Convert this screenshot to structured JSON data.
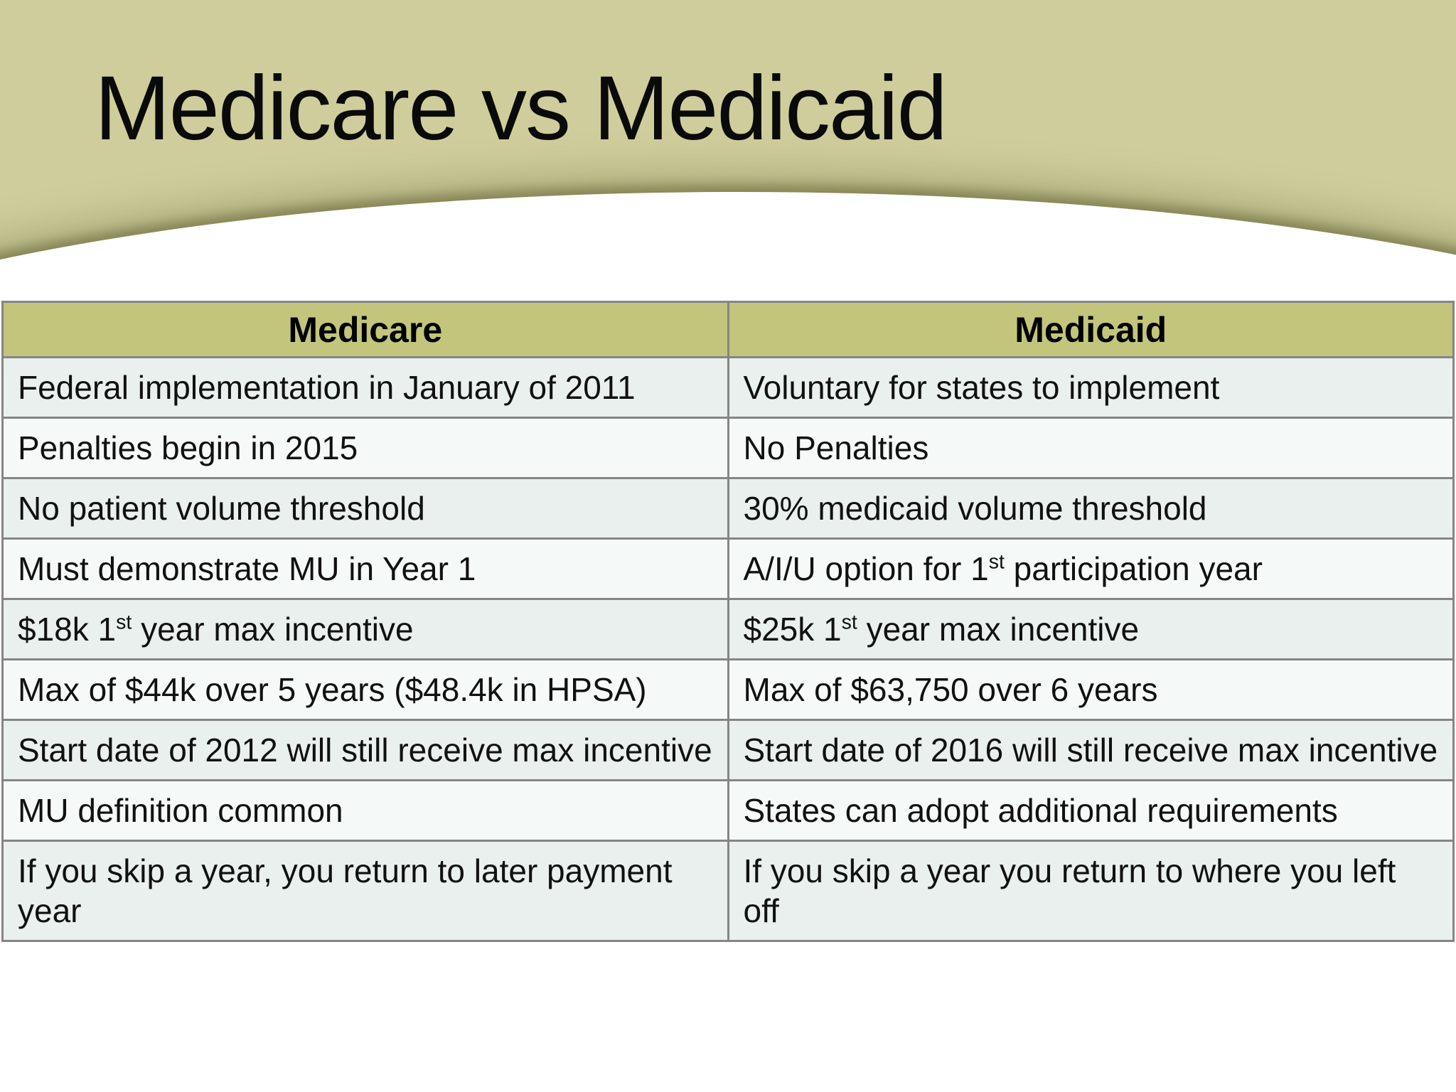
{
  "slide_title": "Medicare vs Medicaid",
  "colors": {
    "band_olive": "#cfcd9b",
    "header_cell_olive": "#c2c57b",
    "row_light": "#e9f0ee",
    "row_lighter": "#f5faf9",
    "border_gray": "#858585",
    "text": "#111111",
    "curve_white": "#ffffff"
  },
  "table": {
    "headers": [
      "Medicare",
      "Medicaid"
    ],
    "rows": [
      [
        "Federal implementation in January of 2011",
        "Voluntary for states to implement"
      ],
      [
        "Penalties begin in 2015",
        "No Penalties"
      ],
      [
        "No patient volume threshold",
        "30% medicaid volume threshold"
      ],
      [
        "Must demonstrate MU in Year 1",
        "A/I/U option for 1st participation year"
      ],
      [
        "$18k 1st year max incentive",
        "$25k 1st year max incentive"
      ],
      [
        "Max of $44k over 5 years ($48.4k in HPSA)",
        "Max of $63,750 over 6 years"
      ],
      [
        "Start date of 2012 will still receive max incentive",
        "Start date of 2016 will still receive max incentive"
      ],
      [
        "MU definition common",
        "States can adopt additional requirements"
      ],
      [
        "If you skip a year, you return to later payment year",
        "If you skip a year you return to where you left off"
      ]
    ]
  }
}
